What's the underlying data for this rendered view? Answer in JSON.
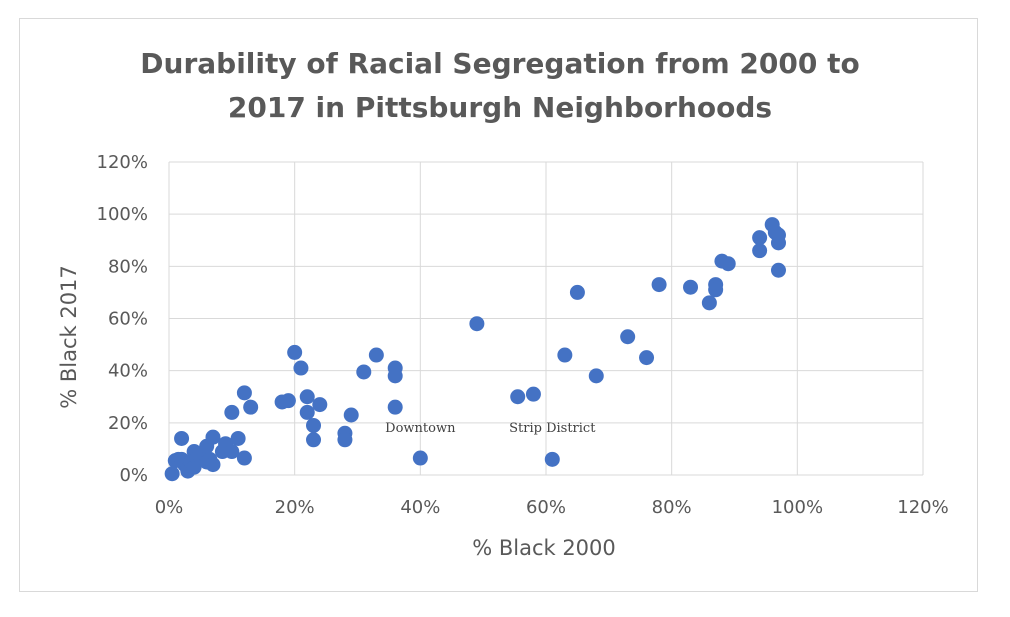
{
  "chart_data": {
    "type": "scatter",
    "title_lines": [
      "Durability of Racial Segregation from 2000 to",
      "2017 in Pittsburgh Neighborhoods"
    ],
    "xlabel": "% Black 2000",
    "ylabel": "% Black 2017",
    "xlim": [
      0,
      1.2
    ],
    "ylim": [
      0,
      1.2
    ],
    "x_ticks": [
      0,
      0.2,
      0.4,
      0.6,
      0.8,
      1.0,
      1.2
    ],
    "y_ticks": [
      0,
      0.2,
      0.4,
      0.6,
      0.8,
      1.0,
      1.2
    ],
    "x_tick_labels": [
      "0%",
      "20%",
      "40%",
      "60%",
      "80%",
      "100%",
      "120%"
    ],
    "y_tick_labels": [
      "0%",
      "20%",
      "40%",
      "60%",
      "80%",
      "100%",
      "120%"
    ],
    "grid": true,
    "marker_color": "#4472c4",
    "series": [
      {
        "name": "Neighborhoods",
        "points": [
          [
            0.005,
            0.005
          ],
          [
            0.01,
            0.055
          ],
          [
            0.015,
            0.06
          ],
          [
            0.02,
            0.14
          ],
          [
            0.02,
            0.06
          ],
          [
            0.025,
            0.04
          ],
          [
            0.03,
            0.025
          ],
          [
            0.03,
            0.015
          ],
          [
            0.035,
            0.05
          ],
          [
            0.04,
            0.09
          ],
          [
            0.04,
            0.03
          ],
          [
            0.045,
            0.065
          ],
          [
            0.05,
            0.07
          ],
          [
            0.055,
            0.08
          ],
          [
            0.06,
            0.11
          ],
          [
            0.06,
            0.05
          ],
          [
            0.065,
            0.06
          ],
          [
            0.07,
            0.145
          ],
          [
            0.07,
            0.04
          ],
          [
            0.085,
            0.09
          ],
          [
            0.09,
            0.12
          ],
          [
            0.1,
            0.09
          ],
          [
            0.1,
            0.24
          ],
          [
            0.11,
            0.14
          ],
          [
            0.12,
            0.315
          ],
          [
            0.12,
            0.065
          ],
          [
            0.13,
            0.26
          ],
          [
            0.18,
            0.28
          ],
          [
            0.19,
            0.285
          ],
          [
            0.2,
            0.47
          ],
          [
            0.21,
            0.41
          ],
          [
            0.22,
            0.3
          ],
          [
            0.22,
            0.24
          ],
          [
            0.23,
            0.19
          ],
          [
            0.23,
            0.135
          ],
          [
            0.24,
            0.27
          ],
          [
            0.28,
            0.16
          ],
          [
            0.28,
            0.135
          ],
          [
            0.29,
            0.23
          ],
          [
            0.31,
            0.395
          ],
          [
            0.33,
            0.46
          ],
          [
            0.36,
            0.41
          ],
          [
            0.36,
            0.38
          ],
          [
            0.36,
            0.26
          ],
          [
            0.4,
            0.065
          ],
          [
            0.49,
            0.58
          ],
          [
            0.555,
            0.3
          ],
          [
            0.58,
            0.31
          ],
          [
            0.61,
            0.06
          ],
          [
            0.63,
            0.46
          ],
          [
            0.65,
            0.7
          ],
          [
            0.68,
            0.38
          ],
          [
            0.73,
            0.53
          ],
          [
            0.76,
            0.45
          ],
          [
            0.78,
            0.73
          ],
          [
            0.83,
            0.72
          ],
          [
            0.86,
            0.66
          ],
          [
            0.87,
            0.73
          ],
          [
            0.87,
            0.71
          ],
          [
            0.88,
            0.82
          ],
          [
            0.89,
            0.81
          ],
          [
            0.94,
            0.91
          ],
          [
            0.94,
            0.86
          ],
          [
            0.96,
            0.96
          ],
          [
            0.965,
            0.93
          ],
          [
            0.97,
            0.92
          ],
          [
            0.97,
            0.89
          ],
          [
            0.97,
            0.785
          ]
        ]
      }
    ],
    "annotations": [
      {
        "text": "Downtown",
        "x": 0.4,
        "y": 0.165
      },
      {
        "text": "Strip District",
        "x": 0.61,
        "y": 0.165
      }
    ]
  }
}
